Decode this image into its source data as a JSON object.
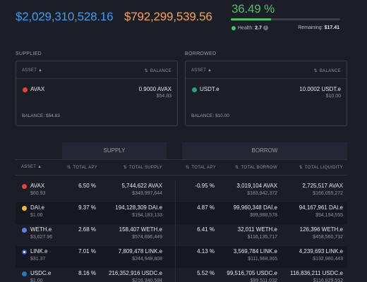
{
  "stats": {
    "total_supplied": "$2,029,310,528.16",
    "total_borrowed": "$792,299,539.56",
    "utilization": "36.49 %",
    "utilization_fraction": 0.3649,
    "health_label": "Health:",
    "health_value": "2.7",
    "remaining_label": "Remaining:",
    "remaining_value": "$17.41"
  },
  "supplied": {
    "title": "SUPPLIED",
    "col_asset": "ASSET",
    "col_balance": "BALANCE",
    "rows": [
      {
        "symbol": "AVAX",
        "icon": "avax-icon",
        "amount": "0.9000 AVAX",
        "usd": "$54.83"
      }
    ],
    "balance": "BALANCE: $54.83"
  },
  "borrowed": {
    "title": "BORROWED",
    "col_asset": "ASSET",
    "col_balance": "BALANCE",
    "rows": [
      {
        "symbol": "USDT.e",
        "icon": "usdt-icon",
        "amount": "10.0002 USDT.e",
        "usd": "$10.00"
      }
    ],
    "balance": "BALANCE: $10.00"
  },
  "market": {
    "supply_tab": "SUPPLY",
    "borrow_tab": "BORROW",
    "headers": {
      "asset": "ASSET",
      "supply_apy": "TOTAL APY",
      "total_supply": "TOTAL SUPPLY",
      "borrow_apy": "TOTAL APY",
      "total_borrow": "TOTAL BORROW",
      "total_liquidity": "TOTAL LIQUIDITY"
    },
    "rows": [
      {
        "symbol": "AVAX",
        "price": "$60.93",
        "supply_apy": "6.50 %",
        "total_supply": "5,744,622 AVAX",
        "total_supply_usd": "$349,997,644",
        "borrow_apy": "-0.95 %",
        "total_borrow": "3,019,104 AVAX",
        "total_borrow_usd": "$183,942,372",
        "liquidity": "2,725,517 AVAX",
        "liquidity_usd": "$166,055,272"
      },
      {
        "symbol": "DAI.e",
        "price": "$1.00",
        "supply_apy": "9.37 %",
        "total_supply": "194,128,309 DAI.e",
        "total_supply_usd": "$194,183,133",
        "borrow_apy": "4.87 %",
        "total_borrow": "99,960,348 DAI.e",
        "total_borrow_usd": "$99,988,578",
        "liquidity": "94,167,961 DAI.e",
        "liquidity_usd": "$94,194,555"
      },
      {
        "symbol": "WETH.e",
        "price": "$3,627.96",
        "supply_apy": "2.68 %",
        "total_supply": "158,407 WETH.e",
        "total_supply_usd": "$574,696,449",
        "borrow_apy": "6.41 %",
        "total_borrow": "32,011 WETH.e",
        "total_borrow_usd": "$116,135,717",
        "liquidity": "126,396 WETH.e",
        "liquidity_usd": "$458,560,732"
      },
      {
        "symbol": "LINK.e",
        "price": "$31.37",
        "supply_apy": "7.01 %",
        "total_supply": "7,809,478 LINK.e",
        "total_supply_usd": "$244,948,808",
        "borrow_apy": "4.13 %",
        "total_borrow": "3,569,784 LINK.e",
        "total_borrow_usd": "$111,968,365",
        "liquidity": "4,239,693 LINK.e",
        "liquidity_usd": "$132,980,443"
      },
      {
        "symbol": "USDC.e",
        "price": "$1.00",
        "supply_apy": "8.16 %",
        "total_supply": "216,352,916 USDC.e",
        "total_supply_usd": "$216,340,584",
        "borrow_apy": "5.52 %",
        "total_borrow": "99,516,705 USDC.e",
        "total_borrow_usd": "$99,511,032",
        "liquidity": "116,836,211 USDC.e",
        "liquidity_usd": "$116,829,552"
      }
    ]
  }
}
